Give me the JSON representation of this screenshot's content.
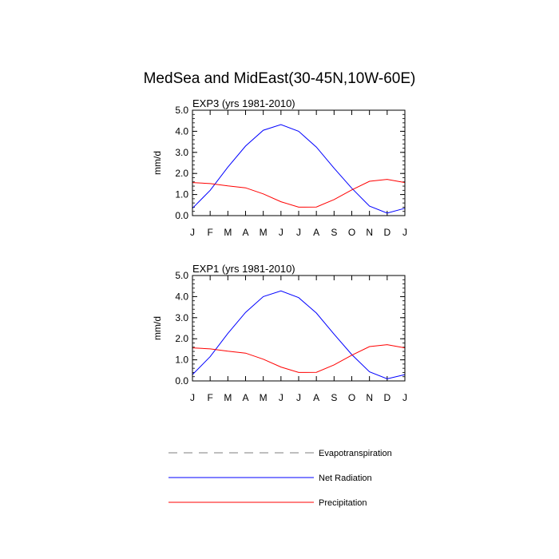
{
  "chart_data": {
    "title": "MedSea and MidEast(30-45N,10W-60E)",
    "type": "line",
    "panels": [
      {
        "title": "EXP3 (yrs 1981-2010)",
        "ylabel": "mm/d",
        "ylim": [
          0,
          5
        ],
        "yticks": [
          "0.0",
          "1.0",
          "2.0",
          "3.0",
          "4.0",
          "5.0"
        ],
        "xticks": [
          "J",
          "F",
          "M",
          "A",
          "M",
          "J",
          "J",
          "A",
          "S",
          "O",
          "N",
          "D",
          "J"
        ],
        "series": [
          {
            "name": "Net Radiation",
            "color": "#0000ff",
            "values": [
              0.35,
              1.2,
              2.3,
              3.3,
              4.05,
              4.32,
              4.0,
              3.25,
              2.25,
              1.3,
              0.45,
              0.12,
              0.35
            ]
          },
          {
            "name": "Precipitation",
            "color": "#ff0000",
            "values": [
              1.57,
              1.52,
              1.41,
              1.32,
              1.03,
              0.66,
              0.4,
              0.41,
              0.76,
              1.22,
              1.63,
              1.72,
              1.57
            ]
          }
        ]
      },
      {
        "title": "EXP1 (yrs 1981-2010)",
        "ylabel": "mm/d",
        "ylim": [
          0,
          5
        ],
        "yticks": [
          "0.0",
          "1.0",
          "2.0",
          "3.0",
          "4.0",
          "5.0"
        ],
        "xticks": [
          "J",
          "F",
          "M",
          "A",
          "M",
          "J",
          "J",
          "A",
          "S",
          "O",
          "N",
          "D",
          "J"
        ],
        "series": [
          {
            "name": "Net Radiation",
            "color": "#0000ff",
            "values": [
              0.3,
              1.15,
              2.25,
              3.25,
              4.0,
              4.27,
              3.95,
              3.22,
              2.22,
              1.25,
              0.43,
              0.1,
              0.3
            ]
          },
          {
            "name": "Precipitation",
            "color": "#ff0000",
            "values": [
              1.57,
              1.52,
              1.41,
              1.32,
              1.03,
              0.66,
              0.4,
              0.41,
              0.76,
              1.22,
              1.63,
              1.72,
              1.57
            ]
          }
        ]
      }
    ],
    "legend": [
      {
        "name": "Evapotranspiration",
        "color": "#999999",
        "style": "dashed"
      },
      {
        "name": "Net Radiation",
        "color": "#0000ff",
        "style": "solid"
      },
      {
        "name": "Precipitation",
        "color": "#ff0000",
        "style": "solid"
      }
    ],
    "legend_position": "bottom"
  }
}
